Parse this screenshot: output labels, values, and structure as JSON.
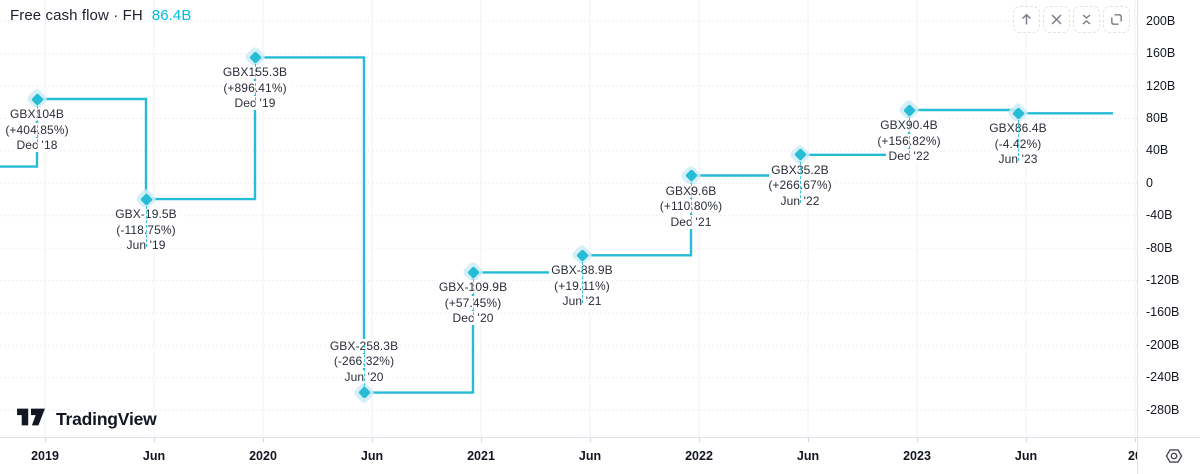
{
  "header": {
    "title": "Free cash flow · FH",
    "value": "86.4B"
  },
  "toolbar": {
    "buttons": [
      {
        "icon": "arrow-up-icon"
      },
      {
        "icon": "close-icon"
      },
      {
        "icon": "collapse-icon"
      },
      {
        "icon": "maximize-icon"
      }
    ]
  },
  "watermark": {
    "brand": "TradingView"
  },
  "chart_data": {
    "type": "line",
    "style": "step",
    "title": "Free cash flow · FH",
    "current_value": "86.4B",
    "currency": "GBX",
    "unit": "billions",
    "grid": true,
    "legend_position": "top-left",
    "x": [
      "Dec '18",
      "Jun '19",
      "Dec '19",
      "Jun '20",
      "Dec '20",
      "Jun '21",
      "Dec '21",
      "Jun '22",
      "Dec '22",
      "Jun '23"
    ],
    "values": [
      104,
      -19.5,
      155.3,
      -258.3,
      -109.9,
      -88.9,
      9.6,
      35.2,
      90.4,
      86.4
    ],
    "point_labels": [
      "GBX104B",
      "GBX-19.5B",
      "GBX155.3B",
      "GBX-258.3B",
      "GBX-109.9B",
      "GBX-88.9B",
      "GBX9.6B",
      "GBX35.2B",
      "GBX90.4B",
      "GBX86.4B"
    ],
    "pct_change": [
      "(+404.85%)",
      "(-118.75%)",
      "(+896.41%)",
      "(-266.32%)",
      "(+57.45%)",
      "(+19.11%)",
      "(+110.80%)",
      "(+266.67%)",
      "(+156.82%)",
      "(-4.42%)"
    ],
    "label_side": [
      "below",
      "below",
      "below",
      "above",
      "below",
      "below",
      "below",
      "below",
      "below",
      "below"
    ],
    "lead_in_value": 20.6,
    "line_color": "#26bcd6",
    "marker_color": "#26bcd6",
    "halo_color": "#cdecf6",
    "value_color": "#00bce2",
    "y_axis": {
      "tick_values": [
        200,
        160,
        120,
        80,
        40,
        0,
        -40,
        -80,
        -120,
        -160,
        -200,
        -240,
        -280
      ],
      "tick_labels": [
        "200B",
        "160B",
        "120B",
        "80B",
        "40B",
        "0",
        "-40B",
        "-80B",
        "-120B",
        "-160B",
        "-200B",
        "-240B",
        "-280B"
      ],
      "ylim": [
        -300,
        220
      ]
    },
    "x_axis": {
      "labels": [
        "2019",
        "Jun",
        "2020",
        "Jun",
        "2021",
        "Jun",
        "2022",
        "Jun",
        "2023",
        "Jun",
        "20"
      ]
    }
  }
}
